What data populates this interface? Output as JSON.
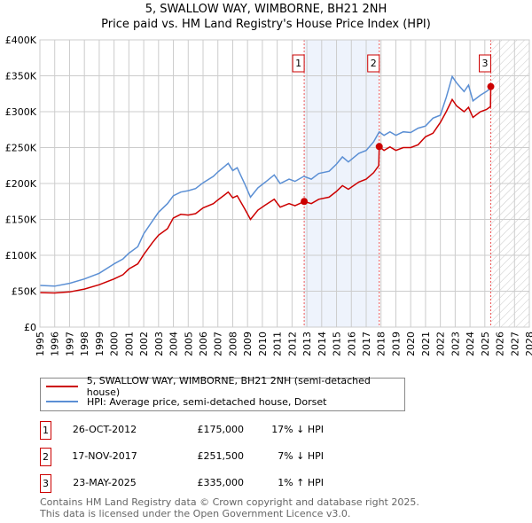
{
  "title_line1": "5, SWALLOW WAY, WIMBORNE, BH21 2NH",
  "title_line2": "Price paid vs. HM Land Registry's House Price Index (HPI)",
  "colors": {
    "property": "#cc0000",
    "hpi": "#5b8fd4",
    "shade": "#eef3fc",
    "grid": "#cccccc"
  },
  "chart_data": {
    "type": "line",
    "title": "Price paid vs. HM Land Registry's House Price Index (HPI)",
    "xlim": [
      1995,
      2028
    ],
    "ylim": [
      0,
      400000
    ],
    "x_ticks": [
      "1995",
      "1996",
      "1997",
      "1998",
      "1999",
      "2000",
      "2001",
      "2002",
      "2003",
      "2004",
      "2005",
      "2006",
      "2007",
      "2008",
      "2009",
      "2010",
      "2011",
      "2012",
      "2013",
      "2014",
      "2015",
      "2016",
      "2017",
      "2018",
      "2019",
      "2020",
      "2021",
      "2022",
      "2023",
      "2024",
      "2025",
      "2026",
      "2027",
      "2028"
    ],
    "y_ticks": [
      {
        "v": 0,
        "label": "£0"
      },
      {
        "v": 50000,
        "label": "£50K"
      },
      {
        "v": 100000,
        "label": "£100K"
      },
      {
        "v": 150000,
        "label": "£150K"
      },
      {
        "v": 200000,
        "label": "£200K"
      },
      {
        "v": 250000,
        "label": "£250K"
      },
      {
        "v": 300000,
        "label": "£300K"
      },
      {
        "v": 350000,
        "label": "£350K"
      },
      {
        "v": 400000,
        "label": "£400K"
      }
    ],
    "grid": true,
    "shaded_range": [
      2012.82,
      2017.88
    ],
    "hatched_from": 2025.4,
    "series": [
      {
        "name": "HPI: Average price, semi-detached house, Dorset",
        "color": "#5b8fd4",
        "points": [
          [
            1995,
            58000
          ],
          [
            1996,
            57000
          ],
          [
            1997,
            61000
          ],
          [
            1998,
            67000
          ],
          [
            1999,
            75000
          ],
          [
            2000,
            88000
          ],
          [
            2000.6,
            95000
          ],
          [
            2001,
            103000
          ],
          [
            2001.6,
            112000
          ],
          [
            2002,
            130000
          ],
          [
            2002.6,
            148000
          ],
          [
            2003,
            160000
          ],
          [
            2003.6,
            172000
          ],
          [
            2004,
            183000
          ],
          [
            2004.5,
            188000
          ],
          [
            2005,
            190000
          ],
          [
            2005.5,
            193000
          ],
          [
            2006,
            201000
          ],
          [
            2006.7,
            210000
          ],
          [
            2007,
            216000
          ],
          [
            2007.7,
            228000
          ],
          [
            2008,
            218000
          ],
          [
            2008.3,
            222000
          ],
          [
            2008.8,
            200000
          ],
          [
            2009.2,
            181000
          ],
          [
            2009.7,
            194000
          ],
          [
            2010.2,
            202000
          ],
          [
            2010.8,
            212000
          ],
          [
            2011.2,
            200000
          ],
          [
            2011.8,
            206000
          ],
          [
            2012.2,
            203000
          ],
          [
            2012.8,
            210000
          ],
          [
            2013.3,
            206000
          ],
          [
            2013.8,
            214000
          ],
          [
            2014.5,
            217000
          ],
          [
            2015,
            227000
          ],
          [
            2015.4,
            237000
          ],
          [
            2015.8,
            230000
          ],
          [
            2016.5,
            242000
          ],
          [
            2017,
            246000
          ],
          [
            2017.5,
            258000
          ],
          [
            2017.88,
            272000
          ],
          [
            2018.2,
            267000
          ],
          [
            2018.6,
            272000
          ],
          [
            2019,
            267000
          ],
          [
            2019.5,
            272000
          ],
          [
            2020,
            271000
          ],
          [
            2020.5,
            277000
          ],
          [
            2021,
            280000
          ],
          [
            2021.5,
            291000
          ],
          [
            2022,
            295000
          ],
          [
            2022.4,
            320000
          ],
          [
            2022.8,
            349000
          ],
          [
            2023.1,
            340000
          ],
          [
            2023.6,
            328000
          ],
          [
            2023.9,
            337000
          ],
          [
            2024.2,
            315000
          ],
          [
            2024.7,
            323000
          ],
          [
            2025.1,
            328000
          ],
          [
            2025.4,
            333000
          ]
        ]
      },
      {
        "name": "5, SWALLOW WAY, WIMBORNE, BH21 2NH (semi-detached house)",
        "color": "#cc0000",
        "points": [
          [
            1995,
            48000
          ],
          [
            1996,
            47500
          ],
          [
            1997,
            49000
          ],
          [
            1998,
            53000
          ],
          [
            1999,
            59000
          ],
          [
            2000,
            67000
          ],
          [
            2000.6,
            73000
          ],
          [
            2001,
            81000
          ],
          [
            2001.6,
            88000
          ],
          [
            2002,
            101000
          ],
          [
            2002.6,
            118000
          ],
          [
            2003,
            128000
          ],
          [
            2003.6,
            137000
          ],
          [
            2004,
            152000
          ],
          [
            2004.5,
            157000
          ],
          [
            2005,
            156000
          ],
          [
            2005.5,
            158000
          ],
          [
            2006,
            166000
          ],
          [
            2006.7,
            172000
          ],
          [
            2007,
            177000
          ],
          [
            2007.7,
            188000
          ],
          [
            2008,
            180000
          ],
          [
            2008.3,
            183000
          ],
          [
            2008.8,
            165000
          ],
          [
            2009.2,
            150000
          ],
          [
            2009.7,
            163000
          ],
          [
            2010.2,
            170000
          ],
          [
            2010.8,
            178000
          ],
          [
            2011.2,
            167000
          ],
          [
            2011.8,
            172000
          ],
          [
            2012.2,
            169000
          ],
          [
            2012.82,
            175000
          ],
          [
            2013.3,
            172000
          ],
          [
            2013.8,
            178000
          ],
          [
            2014.5,
            181000
          ],
          [
            2015,
            189000
          ],
          [
            2015.4,
            197000
          ],
          [
            2015.8,
            192000
          ],
          [
            2016.5,
            202000
          ],
          [
            2017,
            206000
          ],
          [
            2017.5,
            215000
          ],
          [
            2017.85,
            225000
          ],
          [
            2017.88,
            251500
          ],
          [
            2018.2,
            246000
          ],
          [
            2018.6,
            251000
          ],
          [
            2019,
            246000
          ],
          [
            2019.5,
            250000
          ],
          [
            2020,
            250000
          ],
          [
            2020.5,
            254000
          ],
          [
            2021,
            265000
          ],
          [
            2021.5,
            270000
          ],
          [
            2022,
            285000
          ],
          [
            2022.4,
            300000
          ],
          [
            2022.8,
            317000
          ],
          [
            2023.1,
            308000
          ],
          [
            2023.6,
            300000
          ],
          [
            2023.9,
            306000
          ],
          [
            2024.2,
            292000
          ],
          [
            2024.7,
            300000
          ],
          [
            2025.1,
            303000
          ],
          [
            2025.38,
            307000
          ],
          [
            2025.4,
            335000
          ]
        ]
      }
    ],
    "markers": [
      {
        "label": "1",
        "x": 2012.82,
        "y": 175000
      },
      {
        "label": "2",
        "x": 2017.88,
        "y": 251500
      },
      {
        "label": "3",
        "x": 2025.4,
        "y": 335000
      }
    ]
  },
  "legend": {
    "property": "5, SWALLOW WAY, WIMBORNE, BH21 2NH (semi-detached house)",
    "hpi": "HPI: Average price, semi-detached house, Dorset"
  },
  "transactions": [
    {
      "num": "1",
      "date": "26-OCT-2012",
      "price": "£175,000",
      "hpi": "17% ↓ HPI"
    },
    {
      "num": "2",
      "date": "17-NOV-2017",
      "price": "£251,500",
      "hpi": "7% ↓ HPI"
    },
    {
      "num": "3",
      "date": "23-MAY-2025",
      "price": "£335,000",
      "hpi": "1% ↑ HPI"
    }
  ],
  "footer": {
    "line1": "Contains HM Land Registry data © Crown copyright and database right 2025.",
    "line2": "This data is licensed under the Open Government Licence v3.0."
  }
}
